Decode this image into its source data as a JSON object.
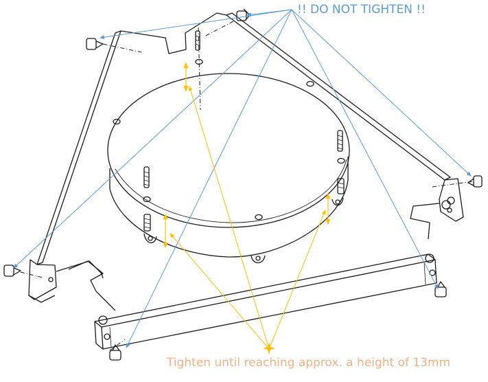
{
  "labels": {
    "warning": "!! DO NOT TIGHTEN !!",
    "instruction": "Tighten until reaching approx.  a height of 13mm"
  },
  "colors": {
    "warning_text": "#5B9BD5",
    "warning_arrow": "#5B9BD5",
    "instruction_text": "#F4B183",
    "instruction_arrow": "#FFC000",
    "height_arrow": "#FFC000",
    "drawing_line": "#1a1a1a"
  }
}
